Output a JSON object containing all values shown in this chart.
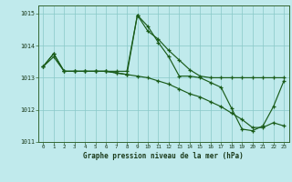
{
  "title": "Graphe pression niveau de la mer (hPa)",
  "bg_color": "#c0eaec",
  "grid_color": "#88c8c8",
  "line_color": "#1a5c1a",
  "x_values": [
    0,
    1,
    2,
    3,
    4,
    5,
    6,
    7,
    8,
    9,
    10,
    11,
    12,
    13,
    14,
    15,
    16,
    17,
    18,
    19,
    20,
    21,
    22,
    23
  ],
  "series1": [
    1013.35,
    1013.65,
    1013.2,
    1013.2,
    1013.2,
    1013.2,
    1013.2,
    1013.15,
    1013.1,
    1014.95,
    1014.6,
    1014.1,
    1013.65,
    1013.05,
    1013.05,
    1013.0,
    1012.85,
    1012.7,
    1012.05,
    1011.4,
    1011.35,
    1011.5,
    1012.1,
    1012.9
  ],
  "series2": [
    1013.35,
    1013.75,
    1013.2,
    1013.2,
    1013.2,
    1013.2,
    1013.2,
    1013.15,
    1013.1,
    1013.05,
    1013.0,
    1012.9,
    1012.8,
    1012.65,
    1012.5,
    1012.4,
    1012.25,
    1012.1,
    1011.9,
    1011.7,
    1011.45,
    1011.45,
    1011.6,
    1011.5
  ],
  "series3": [
    1013.35,
    1013.75,
    1013.2,
    1013.2,
    1013.2,
    1013.2,
    1013.2,
    1013.2,
    1013.2,
    1014.95,
    1014.45,
    1014.2,
    1013.85,
    1013.55,
    1013.25,
    1013.05,
    1013.0,
    1013.0,
    1013.0,
    1013.0,
    1013.0,
    1013.0,
    1013.0,
    1013.0
  ],
  "ylim": [
    1011.0,
    1015.25
  ],
  "yticks": [
    1011,
    1012,
    1013,
    1014,
    1015
  ],
  "xticks": [
    0,
    1,
    2,
    3,
    4,
    5,
    6,
    7,
    8,
    9,
    10,
    11,
    12,
    13,
    14,
    15,
    16,
    17,
    18,
    19,
    20,
    21,
    22,
    23
  ]
}
